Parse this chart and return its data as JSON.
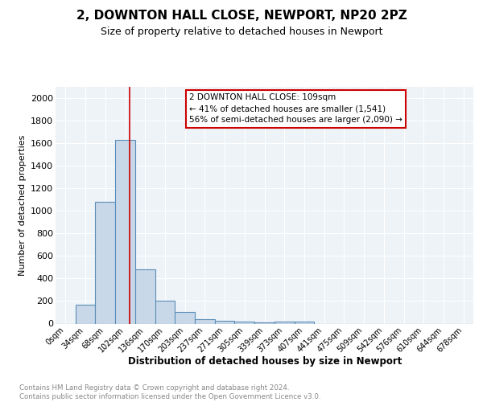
{
  "title": "2, DOWNTON HALL CLOSE, NEWPORT, NP20 2PZ",
  "subtitle": "Size of property relative to detached houses in Newport",
  "xlabel": "Distribution of detached houses by size in Newport",
  "ylabel": "Number of detached properties",
  "bar_color": "#c8d8e8",
  "bar_edge_color": "#5b8db8",
  "bg_color": "#eef3f8",
  "grid_color": "#ffffff",
  "categories": [
    "0sqm",
    "34sqm",
    "68sqm",
    "102sqm",
    "136sqm",
    "170sqm",
    "203sqm",
    "237sqm",
    "271sqm",
    "305sqm",
    "339sqm",
    "373sqm",
    "407sqm",
    "441sqm",
    "475sqm",
    "509sqm",
    "542sqm",
    "576sqm",
    "610sqm",
    "644sqm",
    "678sqm"
  ],
  "values": [
    0,
    165,
    1080,
    1625,
    480,
    200,
    100,
    40,
    25,
    15,
    10,
    15,
    20,
    0,
    0,
    0,
    0,
    0,
    0,
    0,
    0
  ],
  "red_line_x": 3.22,
  "annotation_text": "2 DOWNTON HALL CLOSE: 109sqm\n← 41% of detached houses are smaller (1,541)\n56% of semi-detached houses are larger (2,090) →",
  "annotation_box_color": "#ffffff",
  "annotation_box_edge": "#cc0000",
  "red_line_color": "#cc0000",
  "ylim": [
    0,
    2100
  ],
  "yticks": [
    0,
    200,
    400,
    600,
    800,
    1000,
    1200,
    1400,
    1600,
    1800,
    2000
  ],
  "footer1": "Contains HM Land Registry data © Crown copyright and database right 2024.",
  "footer2": "Contains public sector information licensed under the Open Government Licence v3.0."
}
